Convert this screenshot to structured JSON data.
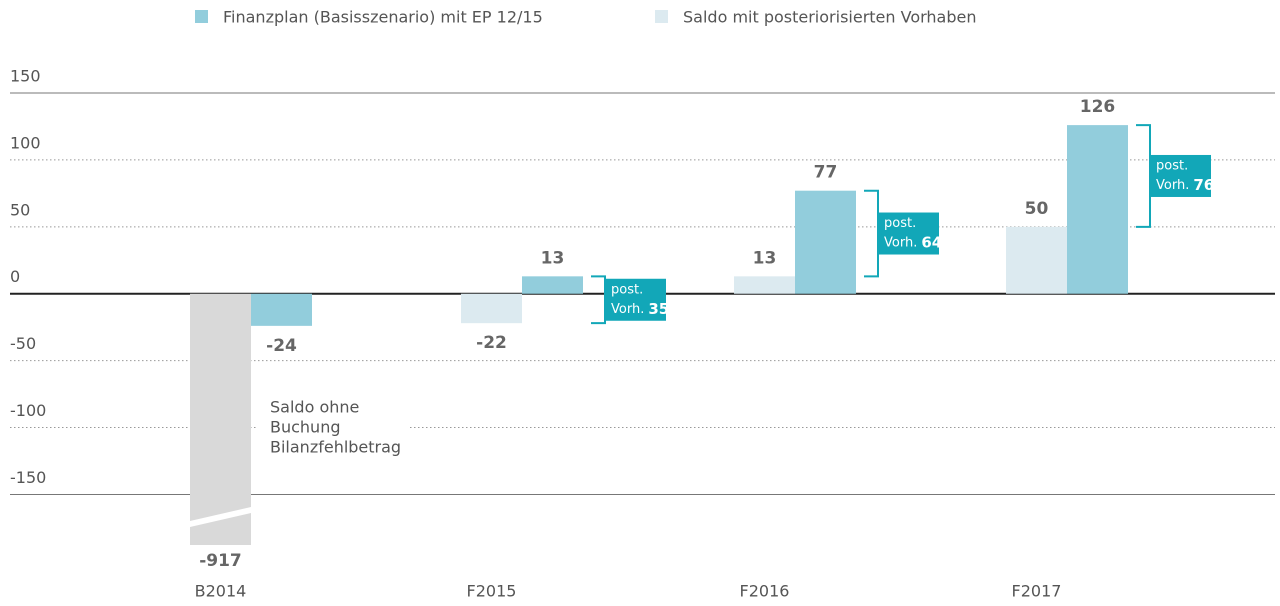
{
  "chart_data": {
    "type": "bar",
    "categories": [
      "B2014",
      "F2015",
      "F2016",
      "F2017"
    ],
    "series": [
      {
        "name": "Finanzplan (Basisszenario) mit EP 12/15",
        "color": "#92cddc",
        "values": [
          -24,
          13,
          77,
          126
        ]
      },
      {
        "name": "Saldo mit posteriorisierten Vorhaben",
        "color": "#dceaf0",
        "values": [
          null,
          -22,
          13,
          50
        ]
      }
    ],
    "broken_bar": {
      "color": "#d9d9d9",
      "values": [
        -917,
        null,
        null,
        null
      ],
      "annotation": [
        "Saldo ohne",
        "Buchung",
        "Bilanzfehlbetrag"
      ]
    },
    "brackets": {
      "color": "#12a7b8",
      "label_top": "post.",
      "label_bottom": "Vorh.",
      "values": [
        null,
        35,
        64,
        76
      ]
    },
    "ylim": [
      -190,
      150
    ],
    "yticks": [
      150,
      100,
      50,
      0,
      -50,
      -100,
      -150
    ],
    "grid": true,
    "legend": "top"
  }
}
